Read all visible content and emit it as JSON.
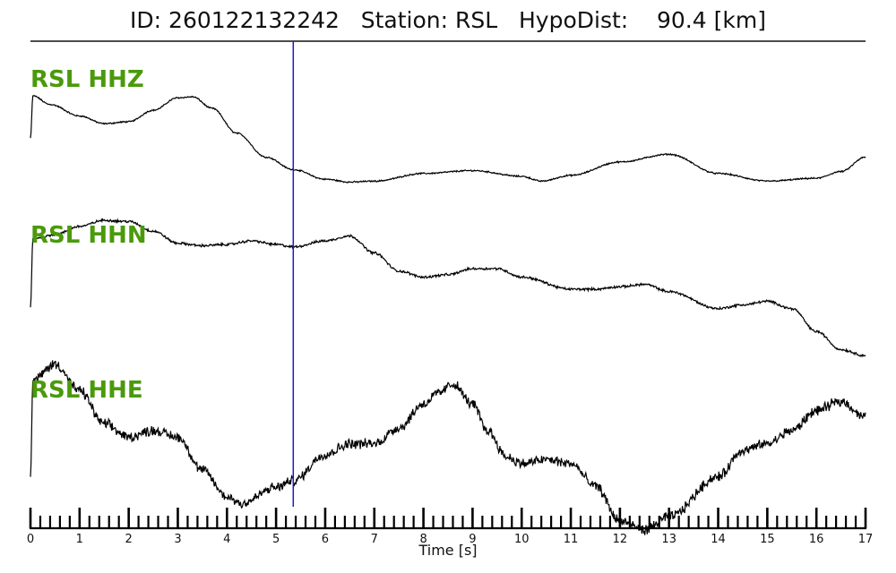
{
  "header": {
    "title": "ID: 260122132242   Station: RSL   HypoDist:    90.4 [km]"
  },
  "chart_data": {
    "type": "line",
    "xlabel": "Time [s]",
    "xlim": [
      0,
      17
    ],
    "x_ticks": [
      "0",
      "1",
      "2",
      "3",
      "4",
      "5",
      "6",
      "7",
      "8",
      "9",
      "10",
      "11",
      "12",
      "13",
      "14",
      "15",
      "16",
      "17"
    ],
    "pick_time": 5.35,
    "pick_color": "#1a1acc",
    "label_color": "#4a9a0b",
    "series": [
      {
        "name": "RSL HHZ",
        "noise": 0.006,
        "points": [
          [
            0,
            0.55
          ],
          [
            0.05,
            0.99
          ],
          [
            0.4,
            0.9
          ],
          [
            1,
            0.78
          ],
          [
            1.5,
            0.7
          ],
          [
            2,
            0.72
          ],
          [
            2.5,
            0.84
          ],
          [
            3,
            0.97
          ],
          [
            3.3,
            0.98
          ],
          [
            3.7,
            0.86
          ],
          [
            4.2,
            0.6
          ],
          [
            4.8,
            0.35
          ],
          [
            5.35,
            0.22
          ],
          [
            6,
            0.12
          ],
          [
            6.5,
            0.09
          ],
          [
            7,
            0.1
          ],
          [
            8,
            0.18
          ],
          [
            9,
            0.21
          ],
          [
            10,
            0.15
          ],
          [
            10.4,
            0.1
          ],
          [
            11,
            0.16
          ],
          [
            12,
            0.3
          ],
          [
            13,
            0.38
          ],
          [
            14,
            0.18
          ],
          [
            15,
            0.1
          ],
          [
            16,
            0.13
          ],
          [
            16.5,
            0.2
          ],
          [
            17,
            0.35
          ]
        ]
      },
      {
        "name": "RSL HHN",
        "noise": 0.008,
        "points": [
          [
            0,
            0.25
          ],
          [
            0.05,
            0.82
          ],
          [
            0.5,
            0.85
          ],
          [
            1,
            0.92
          ],
          [
            1.5,
            0.97
          ],
          [
            2,
            0.96
          ],
          [
            2.5,
            0.88
          ],
          [
            3,
            0.78
          ],
          [
            3.5,
            0.76
          ],
          [
            4,
            0.77
          ],
          [
            4.5,
            0.8
          ],
          [
            5,
            0.77
          ],
          [
            5.35,
            0.75
          ],
          [
            6,
            0.8
          ],
          [
            6.5,
            0.84
          ],
          [
            7,
            0.7
          ],
          [
            7.5,
            0.55
          ],
          [
            8,
            0.5
          ],
          [
            8.5,
            0.52
          ],
          [
            9,
            0.57
          ],
          [
            9.5,
            0.57
          ],
          [
            10,
            0.5
          ],
          [
            11,
            0.4
          ],
          [
            11.5,
            0.4
          ],
          [
            12,
            0.42
          ],
          [
            12.5,
            0.44
          ],
          [
            13,
            0.38
          ],
          [
            14,
            0.24
          ],
          [
            14.5,
            0.27
          ],
          [
            15,
            0.3
          ],
          [
            15.5,
            0.24
          ],
          [
            16,
            0.05
          ],
          [
            16.5,
            -0.1
          ],
          [
            17,
            -0.15
          ]
        ]
      },
      {
        "name": "RSL HHE",
        "noise": 0.03,
        "points": [
          [
            0,
            0.05
          ],
          [
            0.05,
            0.78
          ],
          [
            0.5,
            0.9
          ],
          [
            1,
            0.7
          ],
          [
            1.5,
            0.45
          ],
          [
            2,
            0.35
          ],
          [
            2.5,
            0.4
          ],
          [
            3,
            0.35
          ],
          [
            3.5,
            0.1
          ],
          [
            4,
            -0.1
          ],
          [
            4.3,
            -0.15
          ],
          [
            5,
            -0.03
          ],
          [
            5.35,
            0.02
          ],
          [
            6,
            0.22
          ],
          [
            6.5,
            0.3
          ],
          [
            7,
            0.3
          ],
          [
            7.5,
            0.42
          ],
          [
            8,
            0.6
          ],
          [
            8.3,
            0.68
          ],
          [
            8.6,
            0.75
          ],
          [
            9,
            0.6
          ],
          [
            9.3,
            0.4
          ],
          [
            9.7,
            0.2
          ],
          [
            10,
            0.15
          ],
          [
            10.5,
            0.18
          ],
          [
            11,
            0.15
          ],
          [
            11.5,
            -0.02
          ],
          [
            12,
            -0.28
          ],
          [
            12.5,
            -0.35
          ],
          [
            13,
            -0.25
          ],
          [
            14,
            0.05
          ],
          [
            14.5,
            0.25
          ],
          [
            15,
            0.3
          ],
          [
            15.5,
            0.4
          ],
          [
            16,
            0.55
          ],
          [
            16.5,
            0.62
          ],
          [
            17,
            0.5
          ]
        ]
      }
    ]
  }
}
